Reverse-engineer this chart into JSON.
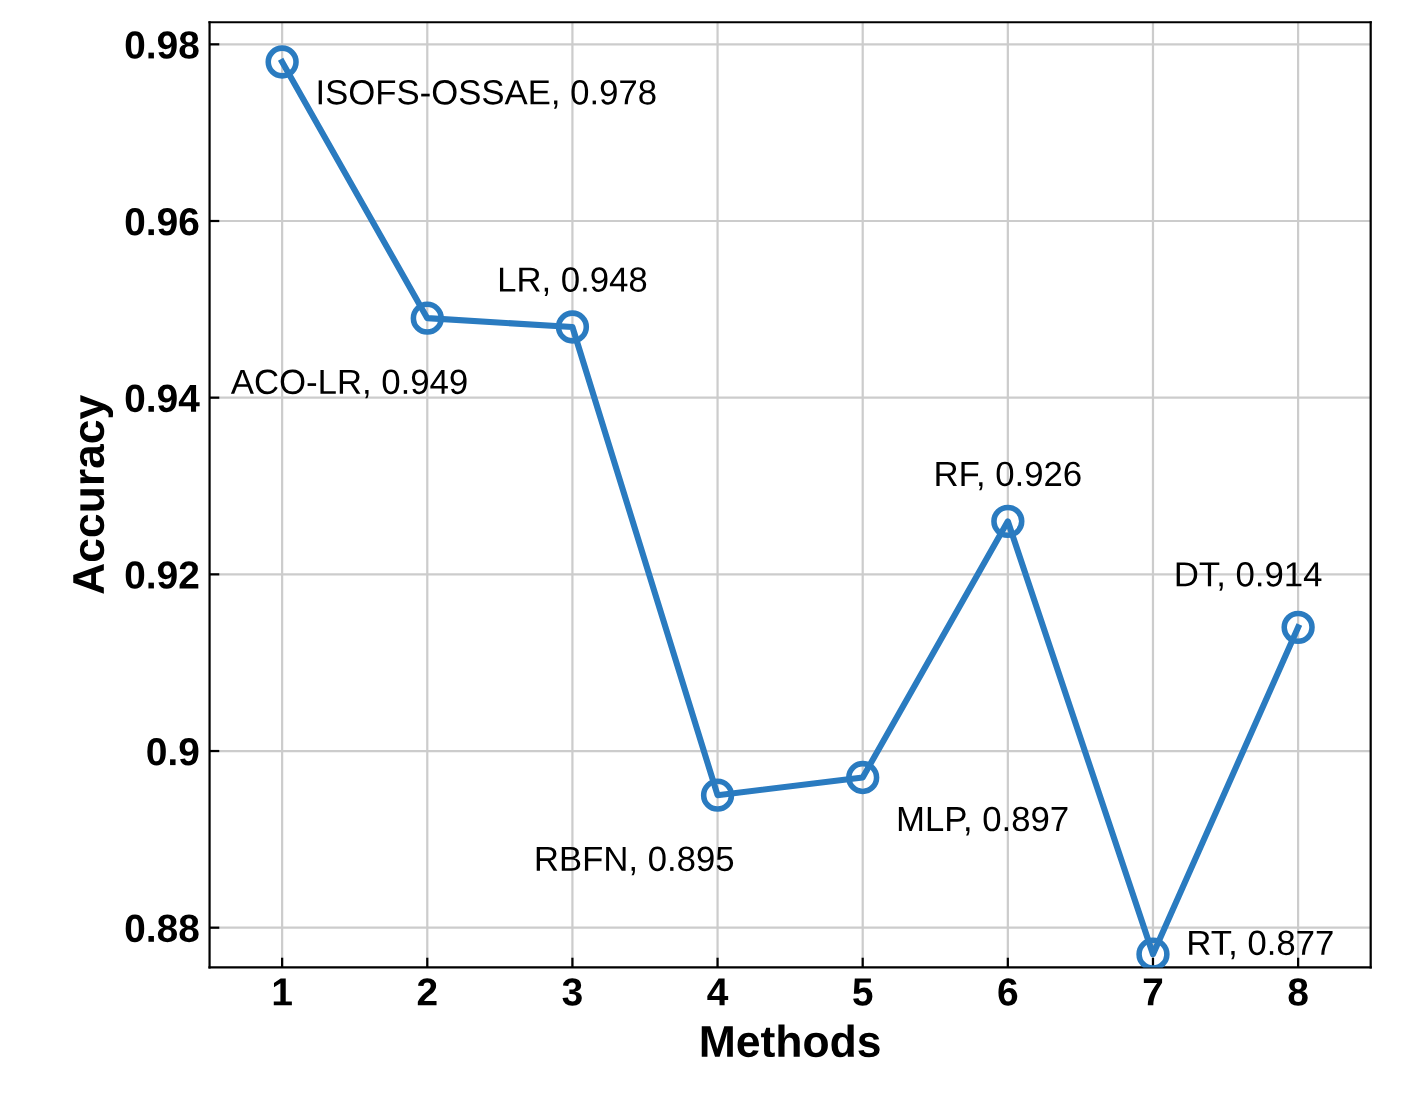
{
  "chart_data": {
    "type": "line",
    "xlabel": "Methods",
    "ylabel": "Accuracy",
    "x": [
      1,
      2,
      3,
      4,
      5,
      6,
      7,
      8
    ],
    "series": [
      {
        "color": "#2a7bc0",
        "values": [
          0.978,
          0.949,
          0.948,
          0.895,
          0.897,
          0.926,
          0.877,
          0.914
        ]
      }
    ],
    "xlim": [
      0.5,
      8.5
    ],
    "xticks": [
      1,
      2,
      3,
      4,
      5,
      6,
      7,
      8
    ],
    "ylim": [
      0.8755,
      0.9825
    ],
    "yticks": [
      {
        "value": 0.88,
        "label": "0.88"
      },
      {
        "value": 0.9,
        "label": "0.9"
      },
      {
        "value": 0.92,
        "label": "0.92"
      },
      {
        "value": 0.94,
        "label": "0.94"
      },
      {
        "value": 0.96,
        "label": "0.96"
      },
      {
        "value": 0.98,
        "label": "0.98"
      }
    ],
    "grid": true,
    "marker": "circle",
    "line_style": "solid",
    "annotations": [
      {
        "text": "ISOFS-OSSAE, 0.978",
        "x": 1,
        "y": 0.978
      },
      {
        "text": "ACO-LR, 0.949",
        "x": 2,
        "y": 0.949
      },
      {
        "text": "LR, 0.948",
        "x": 3,
        "y": 0.948
      },
      {
        "text": "RBFN, 0.895",
        "x": 4,
        "y": 0.895
      },
      {
        "text": "MLP, 0.897",
        "x": 5,
        "y": 0.897
      },
      {
        "text": "RF, 0.926",
        "x": 6,
        "y": 0.926
      },
      {
        "text": "RT, 0.877",
        "x": 7,
        "y": 0.877
      },
      {
        "text": "DT, 0.914",
        "x": 8,
        "y": 0.914
      }
    ]
  }
}
